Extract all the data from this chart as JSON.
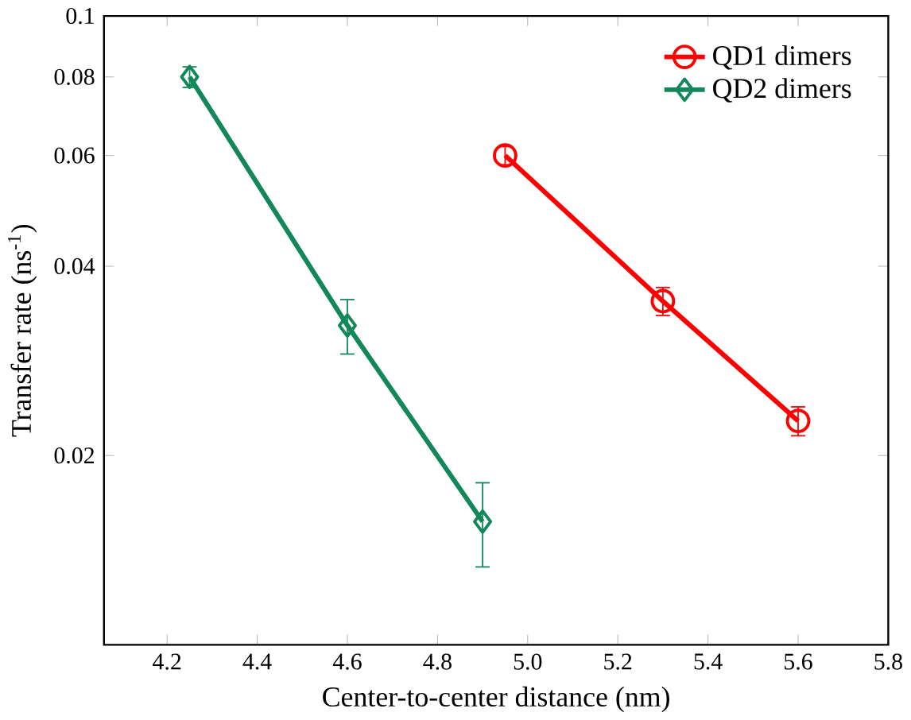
{
  "chart_data": {
    "type": "line",
    "xlabel": "Center-to-center distance (nm)",
    "ylabel": "Transfer rate (ns$^{-1}$)",
    "log": "y",
    "xlim": [
      4.06,
      5.8
    ],
    "xticks": [
      4.2,
      4.4,
      4.6,
      4.8,
      {
        "value": 5,
        "label": "5.0"
      },
      5.2,
      5.4,
      5.6,
      5.8
    ],
    "ylim": [
      0.01,
      0.1
    ],
    "yticks": [
      0.02,
      0.04,
      0.06,
      0.08,
      0.1
    ],
    "legend": "top right",
    "line_style": "solid",
    "series": [
      {
        "name": "QD1 dimers",
        "color": "#ff0000",
        "marker": "circle",
        "x": [
          4.95,
          5.3,
          5.6
        ],
        "values": [
          0.06,
          0.0352,
          0.0227
        ],
        "errors": [
          0.002,
          0.0018,
          0.0012
        ]
      },
      {
        "name": "QD2 dimers",
        "color": "#12875a",
        "marker": "diamond",
        "x": [
          4.25,
          4.6,
          4.9
        ],
        "values": [
          0.08,
          0.0322,
          0.0157
        ],
        "errors": [
          0.003,
          0.0032,
          0.0024
        ]
      }
    ]
  }
}
